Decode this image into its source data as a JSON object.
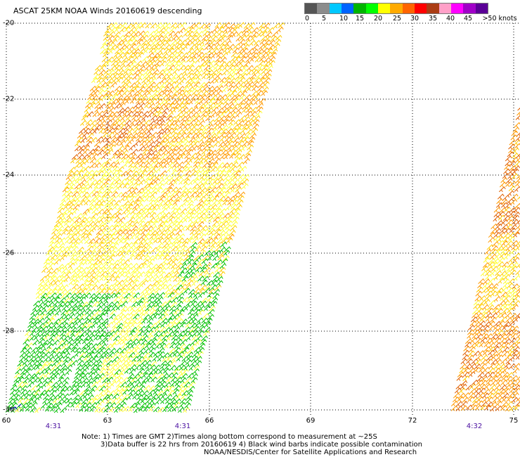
{
  "header": {
    "title": "ASCAT 25KM NOAA Winds 20160619 descending"
  },
  "colorbar": {
    "colors": [
      "#555555",
      "#8c8c8c",
      "#00c8ff",
      "#0064ff",
      "#00b400",
      "#00ff00",
      "#ffff00",
      "#ffaa00",
      "#ff6400",
      "#ff0000",
      "#aa3c14",
      "#ffa0c8",
      "#ff00ff",
      "#a000c8",
      "#5a0096"
    ],
    "labels": [
      "0",
      "5",
      "10",
      "15",
      "20",
      "25",
      "30",
      "35",
      "40",
      "45",
      ">50 knots"
    ]
  },
  "map": {
    "latitude_labels": [
      "-20",
      "-22",
      "-24",
      "-26",
      "-28",
      "-30"
    ],
    "longitude_labels": [
      "60",
      "63",
      "66",
      "69",
      "72",
      "75"
    ],
    "time_labels": [
      "4:31",
      "4:31",
      "4:32"
    ],
    "wind_colors": {
      "light": "#00c000",
      "moderate": "#ffff33",
      "fresh": "#ffcc00",
      "strong": "#ff9900",
      "stronger": "#e06000",
      "contaminated": "#000000",
      "calm": "#0000cc"
    }
  },
  "notes": {
    "line1": "Note: 1) Times are GMT 2)Times along bottom correspond to measurement at ~25S",
    "line2": "3)Data buffer is 22 hrs from 20160619 4) Black wind barbs indicate possible contamination",
    "line3": "NOAA/NESDIS/Center for Satellite Applications and Research"
  }
}
